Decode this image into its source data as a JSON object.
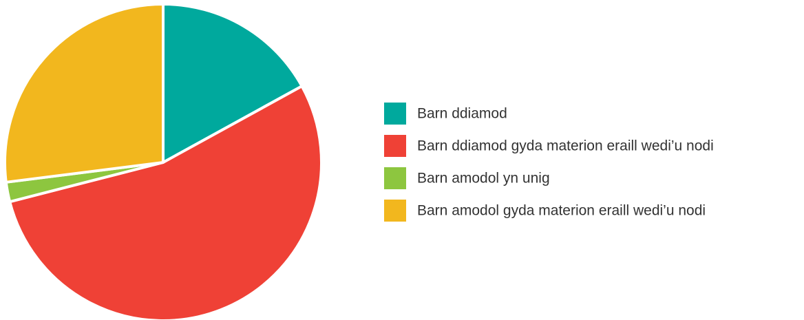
{
  "chart_data": {
    "type": "pie",
    "categories": [
      "Barn ddiamod",
      "Barn ddiamod gyda materion eraill wedi’u nodi",
      "Barn amodol yn unig",
      "Barn amodol gyda materion eraill wedi’u nodi"
    ],
    "values": [
      17,
      54,
      2,
      27
    ],
    "colors": [
      "#00a99d",
      "#ef4136",
      "#8dc63f",
      "#f2b71e"
    ],
    "legend": "right"
  }
}
